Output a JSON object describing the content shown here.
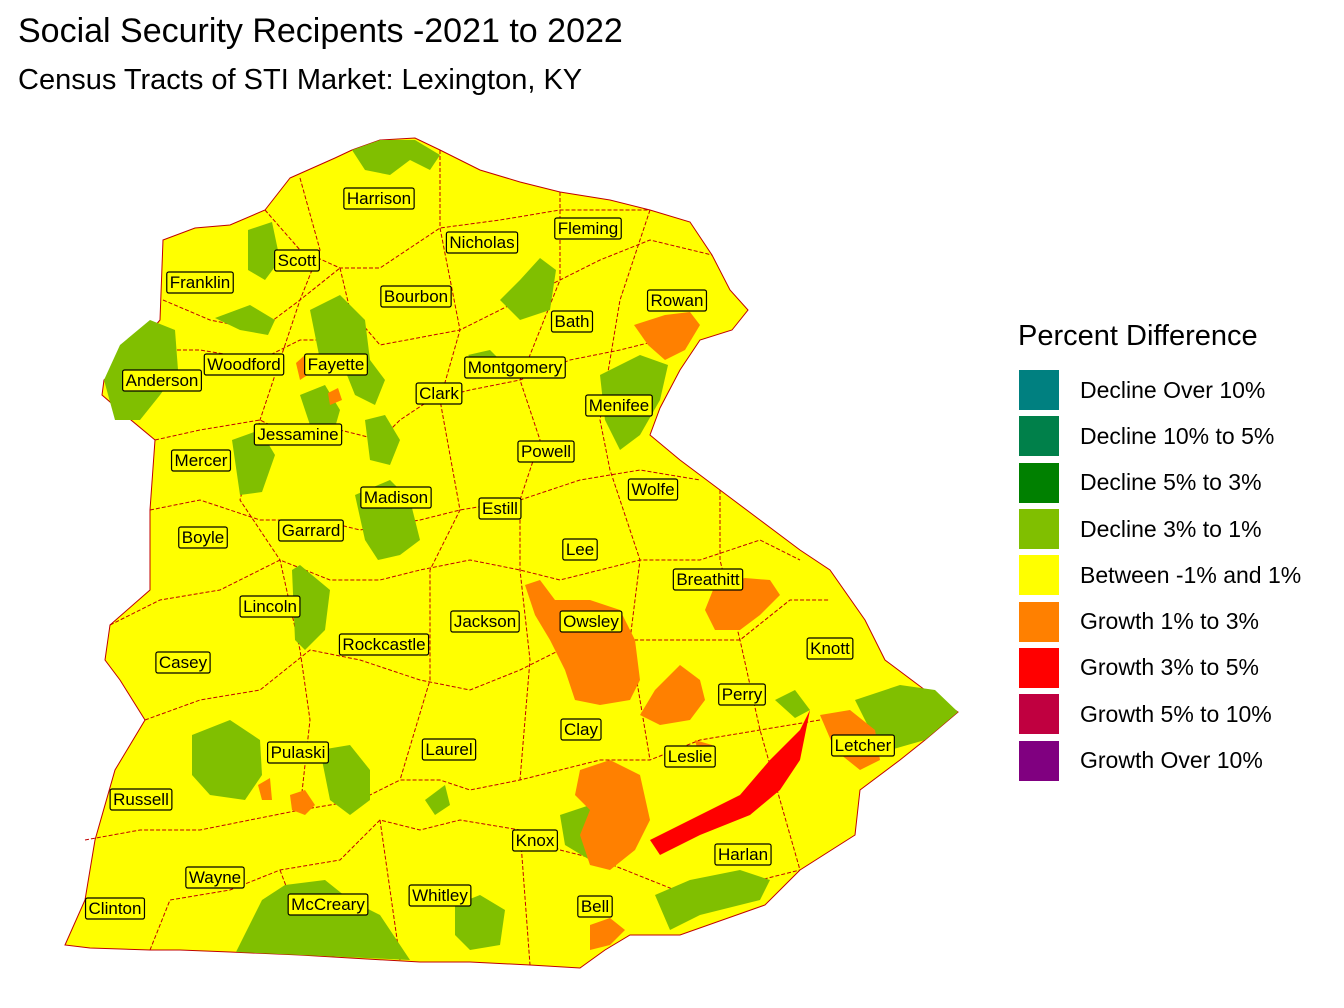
{
  "title": "Social Security Recipents -2021 to 2022",
  "subtitle": "Census Tracts of STI Market: Lexington, KY",
  "legend": {
    "title": "Percent Difference",
    "items": [
      {
        "label": "Decline Over 10%",
        "color": "#008080"
      },
      {
        "label": "Decline 10% to 5%",
        "color": "#00804a"
      },
      {
        "label": "Decline 5% to 3%",
        "color": "#008000"
      },
      {
        "label": "Decline 3% to 1%",
        "color": "#80bf00"
      },
      {
        "label": "Between -1% and 1%",
        "color": "#ffff00"
      },
      {
        "label": "Growth 1% to 3%",
        "color": "#ff8000"
      },
      {
        "label": "Growth 3% to 5%",
        "color": "#ff0000"
      },
      {
        "label": "Growth 5% to 10%",
        "color": "#c00040"
      },
      {
        "label": "Growth Over 10%",
        "color": "#800080"
      }
    ]
  },
  "counties": [
    "Harrison",
    "Fleming",
    "Nicholas",
    "Scott",
    "Franklin",
    "Bourbon",
    "Rowan",
    "Bath",
    "Woodford",
    "Fayette",
    "Montgomery",
    "Anderson",
    "Clark",
    "Menifee",
    "Jessamine",
    "Powell",
    "Mercer",
    "Wolfe",
    "Madison",
    "Estill",
    "Boyle",
    "Garrard",
    "Lee",
    "Breathitt",
    "Lincoln",
    "Jackson",
    "Owsley",
    "Rockcastle",
    "Knott",
    "Casey",
    "Perry",
    "Clay",
    "Pulaski",
    "Laurel",
    "Leslie",
    "Letcher",
    "Russell",
    "Knox",
    "Harlan",
    "Wayne",
    "Whitley",
    "McCreary",
    "Bell",
    "Clinton"
  ]
}
